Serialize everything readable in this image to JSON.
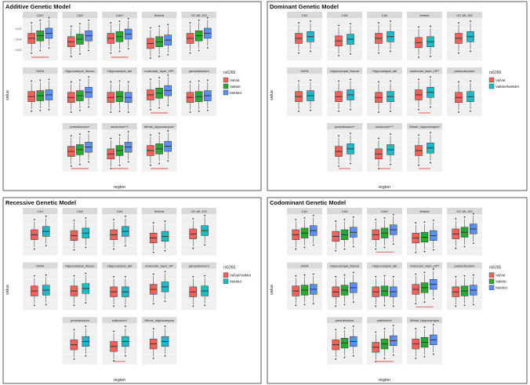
{
  "colors": {
    "red": "#f0625c",
    "green": "#2aa833",
    "blue": "#5b8ff0",
    "teal": "#22b8c4",
    "strip": "#d9d9d9",
    "panel_bg": "#f0f0f0",
    "grid": "#ffffff",
    "signif": "#cc2222"
  },
  "chart_data": [
    {
      "type": "box",
      "title": "Additive Genetic Model",
      "xlabel": "region",
      "ylabel": "value",
      "legend": {
        "title": "rs6265",
        "position": "right",
        "labels": [
          "ValVal",
          "ValMet",
          "MetMet"
        ]
      },
      "panels": [
        {
          "label": "CA1*",
          "yticks": [
            "1200",
            "1100",
            "1000"
          ],
          "medians": [
            0.52,
            0.58,
            0.64
          ],
          "signif": true
        },
        {
          "label": "CA3",
          "yticks": [
            "",
            "",
            ""
          ],
          "medians": [
            0.44,
            0.5,
            0.58
          ],
          "signif": false
        },
        {
          "label": "CA4*",
          "yticks": [
            "",
            "",
            ""
          ],
          "medians": [
            0.52,
            0.56,
            0.62
          ],
          "signif": true
        },
        {
          "label": "fimbria",
          "yticks": [
            "",
            "",
            ""
          ],
          "medians": [
            0.4,
            0.44,
            0.48
          ],
          "signif": false
        },
        {
          "label": "GC-ML-DG",
          "yticks": [
            "",
            "",
            ""
          ],
          "medians": [
            0.52,
            0.58,
            0.64
          ],
          "signif": false
        },
        {
          "label": "HATA",
          "yticks": [
            "",
            "",
            ""
          ],
          "medians": [
            0.46,
            0.48,
            0.5
          ],
          "signif": false
        },
        {
          "label": "Hippocampal_fissure",
          "yticks": [
            "",
            "",
            ""
          ],
          "medians": [
            0.44,
            0.48,
            0.56
          ],
          "signif": false
        },
        {
          "label": "Hippocampal_tail",
          "yticks": [
            "",
            "",
            ""
          ],
          "medians": [
            0.44,
            0.46,
            0.44
          ],
          "signif": false
        },
        {
          "label": "molecular_layer_HP*",
          "yticks": [
            "",
            "",
            ""
          ],
          "medians": [
            0.5,
            0.54,
            0.6
          ],
          "signif": true
        },
        {
          "label": "parasubiculum",
          "yticks": [
            "",
            "",
            ""
          ],
          "medians": [
            0.44,
            0.46,
            0.48
          ],
          "signif": false
        },
        {
          "label": "presubiculum*",
          "yticks": [
            "",
            "",
            ""
          ],
          "medians": [
            0.48,
            0.52,
            0.58
          ],
          "signif": true
        },
        {
          "label": "subiculum***",
          "yticks": [
            "",
            "",
            ""
          ],
          "medians": [
            0.42,
            0.5,
            0.58
          ],
          "signif": true
        },
        {
          "label": "Whole_hippocampus*",
          "yticks": [
            "",
            "",
            ""
          ],
          "medians": [
            0.5,
            0.54,
            0.6
          ],
          "signif": true
        }
      ]
    },
    {
      "type": "box",
      "title": "Dominant Genetic Model",
      "xlabel": "region",
      "ylabel": "value",
      "legend": {
        "title": "rs6265",
        "position": "right",
        "labels": [
          "ValVal",
          "ValMet/MetMet"
        ]
      },
      "panels": [
        {
          "label": "CA1",
          "yticks": [
            "",
            "",
            ""
          ],
          "medians": [
            0.52,
            0.56
          ],
          "signif": false
        },
        {
          "label": "CA3",
          "yticks": [
            "",
            "",
            ""
          ],
          "medians": [
            0.46,
            0.5
          ],
          "signif": false
        },
        {
          "label": "CA4",
          "yticks": [
            "",
            "",
            ""
          ],
          "medians": [
            0.52,
            0.56
          ],
          "signif": false
        },
        {
          "label": "fimbria",
          "yticks": [
            "",
            "",
            ""
          ],
          "medians": [
            0.42,
            0.44
          ],
          "signif": false
        },
        {
          "label": "GC-ML-DG",
          "yticks": [
            "",
            "",
            ""
          ],
          "medians": [
            0.52,
            0.56
          ],
          "signif": false
        },
        {
          "label": "HATA",
          "yticks": [
            "",
            "",
            ""
          ],
          "medians": [
            0.46,
            0.48
          ],
          "signif": false
        },
        {
          "label": "Hippocampal_fissure",
          "yticks": [
            "",
            "",
            ""
          ],
          "medians": [
            0.46,
            0.5
          ],
          "signif": false
        },
        {
          "label": "Hippocampal_tail",
          "yticks": [
            "",
            "",
            ""
          ],
          "medians": [
            0.44,
            0.46
          ],
          "signif": false
        },
        {
          "label": "molecular_layer_HP*",
          "yticks": [
            "",
            "",
            ""
          ],
          "medians": [
            0.5,
            0.56
          ],
          "signif": true
        },
        {
          "label": "parasubiculum",
          "yticks": [
            "",
            "",
            ""
          ],
          "medians": [
            0.44,
            0.46
          ],
          "signif": false
        },
        {
          "label": "presubiculum*",
          "yticks": [
            "",
            "",
            ""
          ],
          "medians": [
            0.48,
            0.54
          ],
          "signif": true
        },
        {
          "label": "subiculum***",
          "yticks": [
            "",
            "",
            ""
          ],
          "medians": [
            0.42,
            0.52
          ],
          "signif": true
        },
        {
          "label": "Whole_hippocampus*",
          "yticks": [
            "",
            "",
            ""
          ],
          "medians": [
            0.5,
            0.56
          ],
          "signif": true
        }
      ]
    },
    {
      "type": "box",
      "title": "Recessive Genetic Model",
      "xlabel": "region",
      "ylabel": "value",
      "legend": {
        "title": "rs6265",
        "position": "right",
        "labels": [
          "ValVal/ValMet",
          "MetMet"
        ]
      },
      "panels": [
        {
          "label": "CA1",
          "yticks": [
            "",
            "",
            ""
          ],
          "medians": [
            0.5,
            0.58
          ],
          "signif": false
        },
        {
          "label": "CA3",
          "yticks": [
            "",
            "",
            ""
          ],
          "medians": [
            0.48,
            0.54
          ],
          "signif": false
        },
        {
          "label": "CA4",
          "yticks": [
            "",
            "",
            ""
          ],
          "medians": [
            0.5,
            0.58
          ],
          "signif": false
        },
        {
          "label": "fimbria",
          "yticks": [
            "",
            "",
            ""
          ],
          "medians": [
            0.42,
            0.46
          ],
          "signif": false
        },
        {
          "label": "GC-ML-DG",
          "yticks": [
            "",
            "",
            ""
          ],
          "medians": [
            0.52,
            0.6
          ],
          "signif": false
        },
        {
          "label": "HATA",
          "yticks": [
            "",
            "",
            ""
          ],
          "medians": [
            0.46,
            0.48
          ],
          "signif": false
        },
        {
          "label": "Hippocampal_fissure",
          "yticks": [
            "",
            "",
            ""
          ],
          "medians": [
            0.46,
            0.52
          ],
          "signif": false
        },
        {
          "label": "Hippocampal_tail",
          "yticks": [
            "",
            "",
            ""
          ],
          "medians": [
            0.44,
            0.44
          ],
          "signif": false
        },
        {
          "label": "molecular_layer_HP",
          "yticks": [
            "",
            "",
            ""
          ],
          "medians": [
            0.5,
            0.56
          ],
          "signif": false
        },
        {
          "label": "parasubiculum",
          "yticks": [
            "",
            "",
            ""
          ],
          "medians": [
            0.44,
            0.46
          ],
          "signif": false
        },
        {
          "label": "presubiculum",
          "yticks": [
            "",
            "",
            ""
          ],
          "medians": [
            0.48,
            0.56
          ],
          "signif": false
        },
        {
          "label": "subiculum*",
          "yticks": [
            "",
            "",
            ""
          ],
          "medians": [
            0.44,
            0.56
          ],
          "signif": true
        },
        {
          "label": "Whole_hippocampus",
          "yticks": [
            "",
            "",
            ""
          ],
          "medians": [
            0.5,
            0.56
          ],
          "signif": false
        }
      ]
    },
    {
      "type": "box",
      "title": "Codominant Genetic Model",
      "xlabel": "region",
      "ylabel": "value",
      "legend": {
        "title": "rs6265",
        "position": "right",
        "labels": [
          "ValVal",
          "ValMet",
          "MetMet"
        ]
      },
      "panels": [
        {
          "label": "CA1",
          "yticks": [
            "",
            "",
            ""
          ],
          "medians": [
            0.5,
            0.54,
            0.6
          ],
          "signif": false
        },
        {
          "label": "CA3",
          "yticks": [
            "",
            "",
            ""
          ],
          "medians": [
            0.46,
            0.5,
            0.56
          ],
          "signif": false
        },
        {
          "label": "CA4*",
          "yticks": [
            "",
            "",
            ""
          ],
          "medians": [
            0.5,
            0.54,
            0.62
          ],
          "signif": true
        },
        {
          "label": "fimbria",
          "yticks": [
            "",
            "",
            ""
          ],
          "medians": [
            0.42,
            0.44,
            0.48
          ],
          "signif": false
        },
        {
          "label": "GC-ML-DG",
          "yticks": [
            "",
            "",
            ""
          ],
          "medians": [
            0.52,
            0.56,
            0.64
          ],
          "signif": false
        },
        {
          "label": "HATA",
          "yticks": [
            "",
            "",
            ""
          ],
          "medians": [
            0.46,
            0.48,
            0.5
          ],
          "signif": false
        },
        {
          "label": "Hippocampal_fissure",
          "yticks": [
            "",
            "",
            ""
          ],
          "medians": [
            0.44,
            0.48,
            0.54
          ],
          "signif": false
        },
        {
          "label": "Hippocampal_tail",
          "yticks": [
            "",
            "",
            ""
          ],
          "medians": [
            0.44,
            0.46,
            0.44
          ],
          "signif": false
        },
        {
          "label": "molecular_layer_HP*",
          "yticks": [
            "",
            "",
            ""
          ],
          "medians": [
            0.5,
            0.54,
            0.62
          ],
          "signif": true
        },
        {
          "label": "parasubiculum",
          "yticks": [
            "",
            "",
            ""
          ],
          "medians": [
            0.44,
            0.46,
            0.48
          ],
          "signif": false
        },
        {
          "label": "presubiculum",
          "yticks": [
            "",
            "",
            ""
          ],
          "medians": [
            0.48,
            0.52,
            0.56
          ],
          "signif": false
        },
        {
          "label": "subiculum*",
          "yticks": [
            "",
            "",
            ""
          ],
          "medians": [
            0.42,
            0.5,
            0.58
          ],
          "signif": true
        },
        {
          "label": "Whole_hippocampus",
          "yticks": [
            "",
            "",
            ""
          ],
          "medians": [
            0.5,
            0.54,
            0.6
          ],
          "signif": false
        }
      ]
    }
  ]
}
